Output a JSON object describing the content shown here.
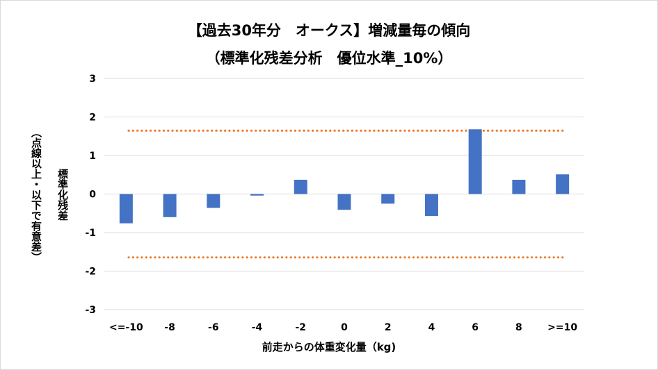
{
  "chart_data": {
    "type": "bar",
    "title_line1": "【過去30年分　オークス】増減量毎の傾向",
    "title_line2": "（標準化残差分析　優位水準_10%）",
    "xlabel": "前走からの体重変化量（kg)",
    "ylabel_main": "標準化残差",
    "ylabel_sub": "（点線以上・以下で有意差）",
    "categories": [
      "<=-10",
      "-8",
      "-6",
      "-4",
      "-2",
      "0",
      "2",
      "4",
      "6",
      "8",
      ">=10"
    ],
    "values": [
      -0.76,
      -0.6,
      -0.36,
      -0.04,
      0.37,
      -0.41,
      -0.25,
      -0.57,
      1.68,
      0.37,
      0.51
    ],
    "ylim": [
      -3,
      3
    ],
    "yticks": [
      3,
      2,
      1,
      0,
      -1,
      -2,
      -3
    ],
    "threshold": 1.645,
    "grid": true,
    "colors": {
      "bar": "#4472c4",
      "threshold": "#ed7d31",
      "grid": "#d9d9d9"
    }
  }
}
